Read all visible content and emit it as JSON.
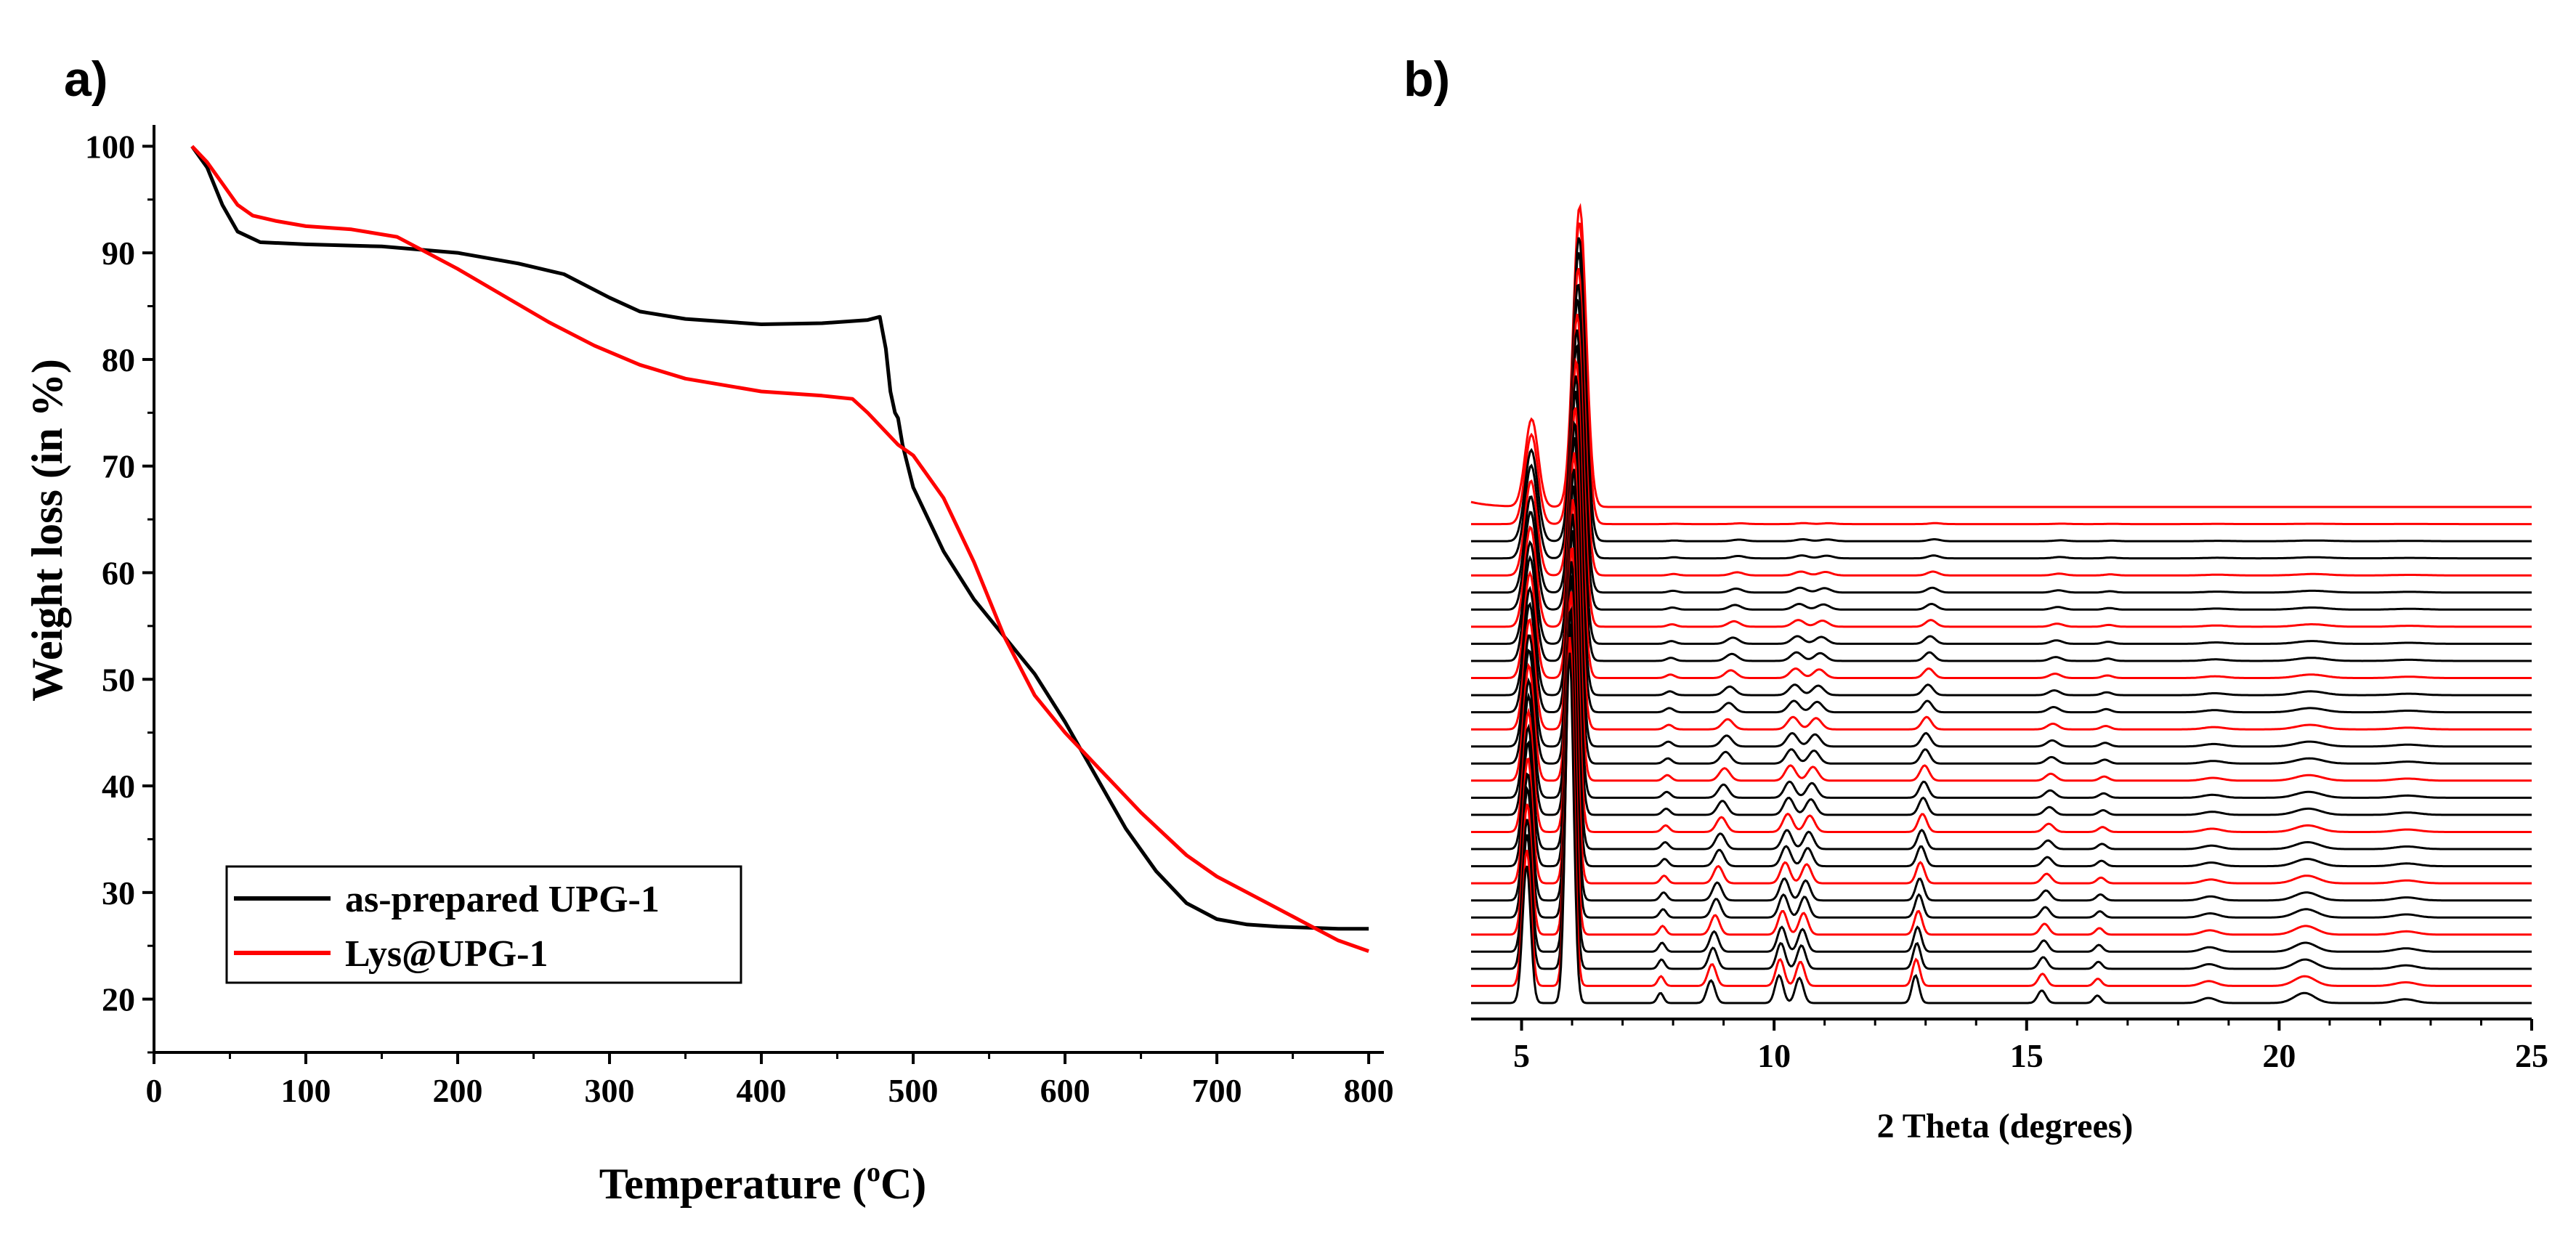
{
  "chart_data": [
    {
      "panel_label": "a)",
      "type": "line",
      "xlabel": "Temperature (",
      "xlabel_unit_super": "o",
      "xlabel_unit_tail": "C)",
      "ylabel": "Weight loss (in %)",
      "xlim": [
        0,
        810
      ],
      "ylim": [
        15,
        102
      ],
      "xticks": [
        "0",
        "100",
        "200",
        "300",
        "400",
        "500",
        "600",
        "700",
        "800"
      ],
      "yticks": [
        "20",
        "30",
        "40",
        "50",
        "60",
        "70",
        "80",
        "90",
        "100"
      ],
      "legend": "bottom-left",
      "series": [
        {
          "name": "as-prepared UPG-1",
          "color": "#000000",
          "x": [
            25,
            35,
            45,
            55,
            70,
            100,
            150,
            200,
            240,
            270,
            300,
            320,
            350,
            400,
            440,
            470,
            478,
            482,
            485,
            488,
            490,
            493,
            500,
            520,
            540,
            560,
            580,
            600,
            620,
            640,
            660,
            680,
            700,
            720,
            740,
            760,
            780,
            800
          ],
          "y": [
            100,
            98,
            94.5,
            92,
            91,
            90.8,
            90.6,
            90,
            89,
            88,
            85.8,
            84.5,
            83.8,
            83.3,
            83.4,
            83.7,
            84,
            81,
            77,
            75,
            74.5,
            72,
            68,
            62,
            57.5,
            54,
            50.5,
            46,
            41,
            36,
            32,
            29,
            27.5,
            27,
            26.8,
            26.7,
            26.6,
            26.6
          ]
        },
        {
          "name": "Lys@UPG-1",
          "color": "#ff0000",
          "x": [
            25,
            35,
            45,
            55,
            65,
            80,
            100,
            130,
            160,
            180,
            200,
            230,
            260,
            290,
            320,
            350,
            400,
            440,
            460,
            470,
            480,
            490,
            500,
            520,
            540,
            560,
            580,
            600,
            620,
            650,
            680,
            700,
            720,
            740,
            760,
            780,
            800
          ],
          "y": [
            100,
            98.5,
            96.5,
            94.5,
            93.5,
            93,
            92.5,
            92.2,
            91.5,
            90,
            88.5,
            86,
            83.5,
            81.3,
            79.5,
            78.2,
            77,
            76.6,
            76.3,
            75,
            73.5,
            72,
            71,
            67,
            61,
            54,
            48.5,
            45,
            42,
            37.5,
            33.5,
            31.5,
            30,
            28.5,
            27,
            25.5,
            24.5
          ]
        }
      ]
    },
    {
      "panel_label": "b)",
      "type": "line",
      "xlabel": "2 Theta (degrees)",
      "xlim": [
        4,
        25
      ],
      "xticks": [
        "5",
        "10",
        "15",
        "20",
        "25"
      ],
      "stack": {
        "count": 30,
        "red_every": 3,
        "colors": {
          "primary": "#000000",
          "highlight": "#ff0000"
        },
        "peaks": [
          {
            "pos": 5.1,
            "width": 0.08,
            "amp_base": 0.55,
            "amp_top": 0.35,
            "shift": 0.1
          },
          {
            "pos": 5.95,
            "width": 0.08,
            "amp_base": 1.4,
            "amp_top": 1.2,
            "shift": 0.2
          },
          {
            "pos": 7.75,
            "width": 0.06,
            "amp_base": 0.04,
            "amp_top": 0.0,
            "shift": 0.3
          },
          {
            "pos": 8.75,
            "width": 0.08,
            "amp_base": 0.09,
            "amp_top": 0.0,
            "shift": 0.6
          },
          {
            "pos": 10.1,
            "width": 0.08,
            "amp_base": 0.11,
            "amp_top": 0.0,
            "shift": 0.5
          },
          {
            "pos": 10.5,
            "width": 0.08,
            "amp_base": 0.1,
            "amp_top": 0.0,
            "shift": 0.6
          },
          {
            "pos": 12.8,
            "width": 0.07,
            "amp_base": 0.11,
            "amp_top": 0.0,
            "shift": 0.4
          },
          {
            "pos": 15.3,
            "width": 0.08,
            "amp_base": 0.05,
            "amp_top": 0.0,
            "shift": 0.4
          },
          {
            "pos": 16.4,
            "width": 0.07,
            "amp_base": 0.03,
            "amp_top": 0.0,
            "shift": 0.3
          },
          {
            "pos": 18.6,
            "width": 0.15,
            "amp_base": 0.02,
            "amp_top": 0.0,
            "shift": 0.2
          },
          {
            "pos": 20.5,
            "width": 0.2,
            "amp_base": 0.04,
            "amp_top": 0.0,
            "shift": 0.2
          },
          {
            "pos": 22.5,
            "width": 0.2,
            "amp_base": 0.015,
            "amp_top": 0.0,
            "shift": 0.1
          }
        ]
      }
    }
  ]
}
